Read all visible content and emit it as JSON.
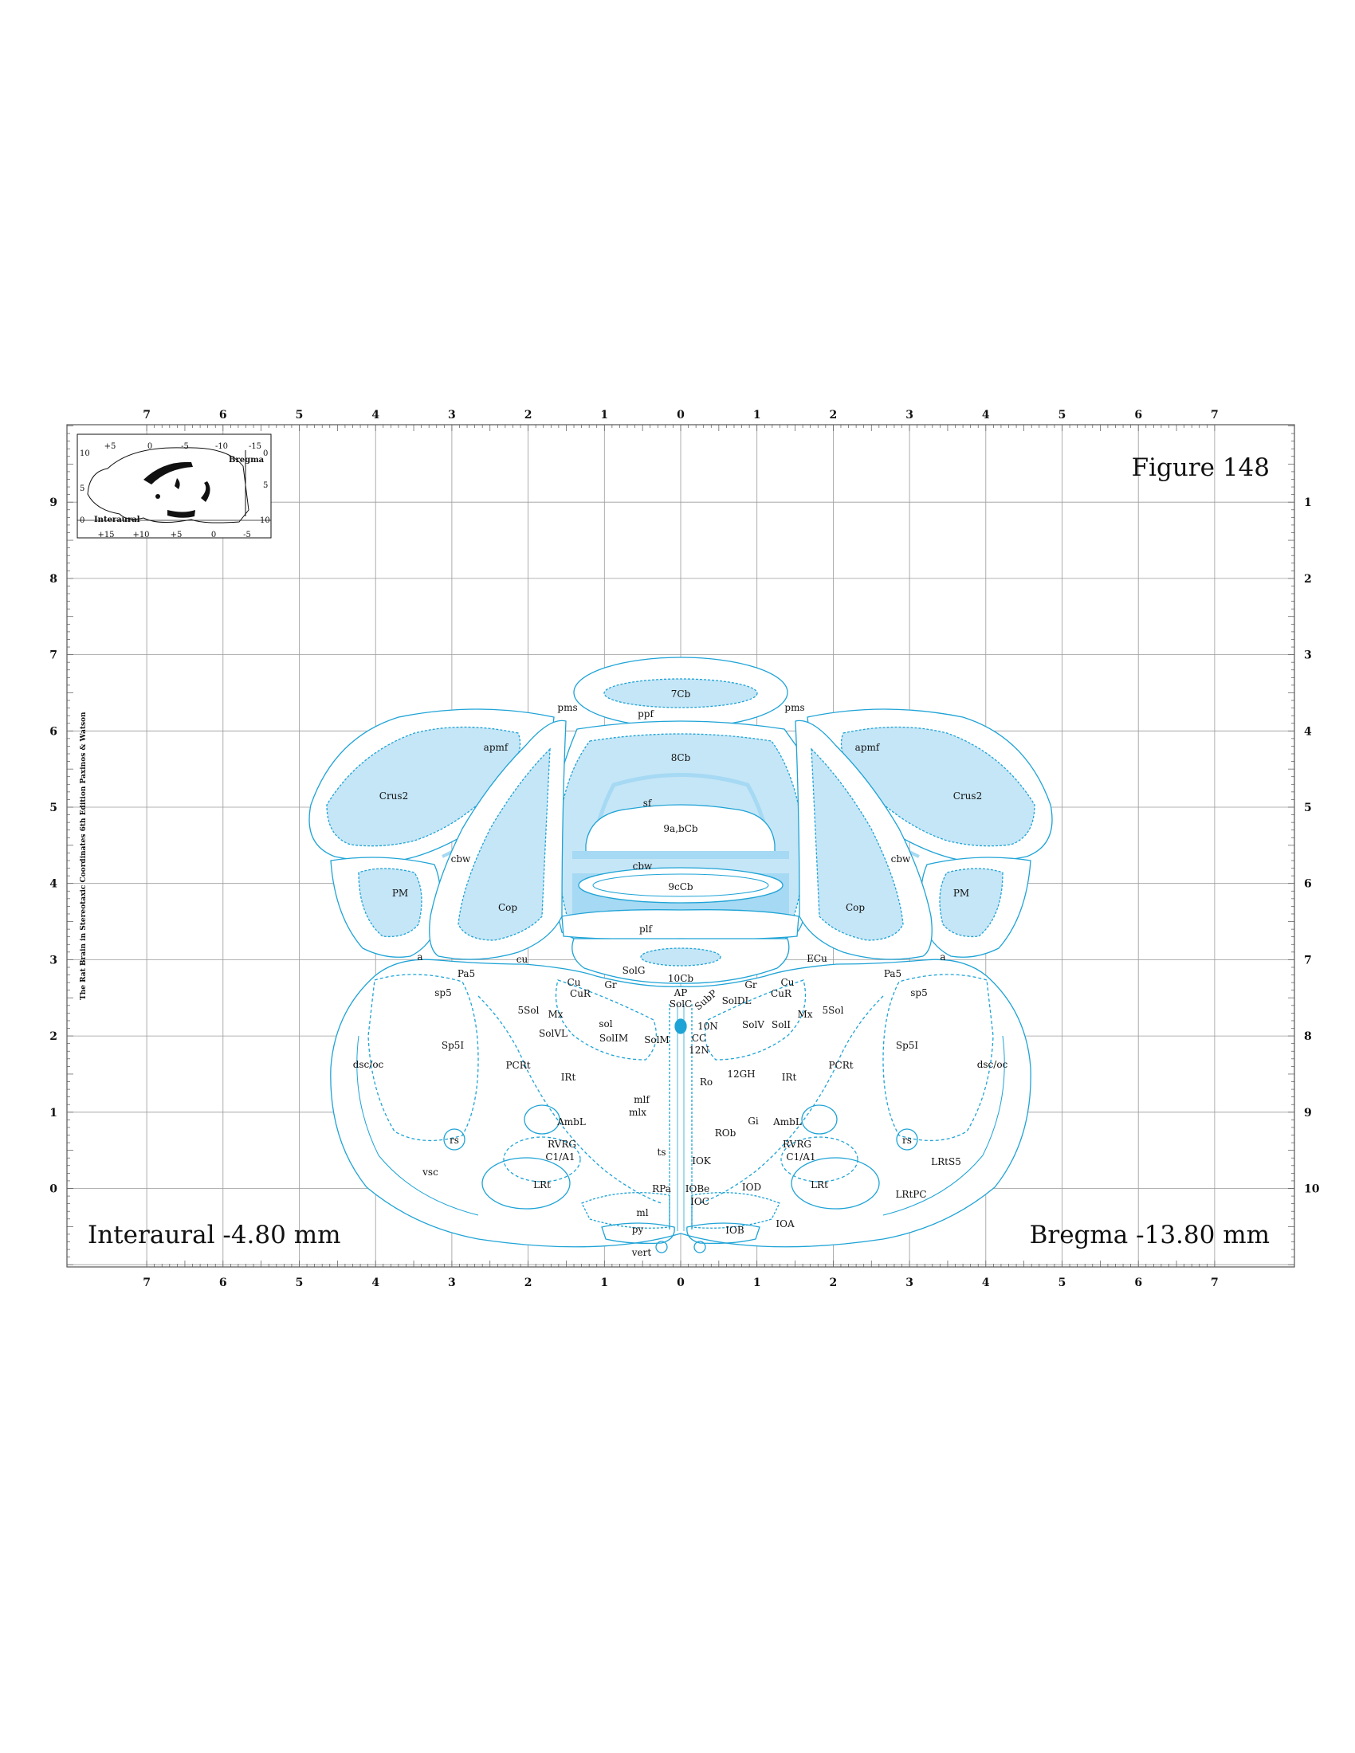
{
  "figure_title": "Figure 148",
  "interaural": "Interaural -4.80 mm",
  "bregma": "Bregma -13.80 mm",
  "side_credit": "The Rat Brain in Stereotaxic Coordinates 6th Edition Paxinos & Watson",
  "x_axis_ticks": [
    "7",
    "6",
    "5",
    "4",
    "3",
    "2",
    "1",
    "0",
    "1",
    "2",
    "3",
    "4",
    "5",
    "6",
    "7"
  ],
  "y_axis_left_ticks": [
    "9",
    "8",
    "7",
    "6",
    "5",
    "4",
    "3",
    "2",
    "1",
    "0"
  ],
  "y_axis_right_ticks": [
    "1",
    "2",
    "3",
    "4",
    "5",
    "6",
    "7",
    "8",
    "9",
    "10"
  ],
  "inset": {
    "top_ticks": [
      "+5",
      "0",
      "-5",
      "-10",
      "-15"
    ],
    "bottom_ticks": [
      "+15",
      "+10",
      "+5",
      "0",
      "-5"
    ],
    "left_ticks": [
      "10",
      "5",
      "0"
    ],
    "right_ticks": [
      "0",
      "5",
      "10"
    ],
    "bregma_label": "Bregma",
    "interaural_label": "Interaural"
  },
  "region_labels": {
    "cb7": "7Cb",
    "pms_l": "pms",
    "pms_r": "pms",
    "ppf": "ppf",
    "cb8": "8Cb",
    "apmf_l": "apmf",
    "apmf_r": "apmf",
    "crus2_l": "Crus2",
    "crus2_r": "Crus2",
    "sf": "sf",
    "cb9ab": "9a,bCb",
    "cbw_l": "cbw",
    "cbw_c": "cbw",
    "cbw_r": "cbw",
    "pm_l": "PM",
    "pm_r": "PM",
    "cb9c": "9cCb",
    "cop_l": "Cop",
    "cop_r": "Cop",
    "plf": "plf",
    "a_l": "a",
    "a_r": "a",
    "cu_l": "cu",
    "ecu": "ECu",
    "pa5_l": "Pa5",
    "pa5_r": "Pa5",
    "solg": "SolG",
    "cb10": "10Cb",
    "sp5_l": "sp5",
    "sp5_r": "sp5",
    "cu_nl": "Cu",
    "cur_l": "CuR",
    "gr_l": "Gr",
    "ap": "AP",
    "solc": "SolC",
    "subp": "SubP",
    "gr_r": "Gr",
    "cu_nr": "Cu",
    "cur_r": "CuR",
    "soldl": "SolDL",
    "mx_l": "Mx",
    "mx_r": "Mx",
    "sol5_l": "5Sol",
    "sol5_r": "5Sol",
    "solvl": "SolVL",
    "sol": "sol",
    "solim": "SolIM",
    "solm": "SolM",
    "n10": "10N",
    "cc": "CC",
    "n12": "12N",
    "solv": "SolV",
    "soli": "SolI",
    "sp5i_l": "Sp5I",
    "sp5i_r": "Sp5I",
    "dscoc_l": "dsc/oc",
    "dscoc_r": "dsc/oc",
    "pcrt_l": "PCRt",
    "pcrt_r": "PCRt",
    "irt_l": "IRt",
    "irt_r": "IRt",
    "gh12": "12GH",
    "ro": "Ro",
    "mlf": "mlf",
    "mlx": "mlx",
    "gi": "Gi",
    "ambl_l": "AmbL",
    "ambl_r": "AmbL",
    "rob": "ROb",
    "rs_l": "rs",
    "rs_r": "rs",
    "rvrg_l": "RVRG",
    "rvrg_r": "RVRG",
    "c1a1_l": "C1/A1",
    "c1a1_r": "C1/A1",
    "ts": "ts",
    "iok": "IOK",
    "lrts5": "LRtS5",
    "vsc": "vsc",
    "lrt_l": "LRt",
    "lrt_r": "LRt",
    "rpa": "RPa",
    "iobe": "IOBe",
    "iod": "IOD",
    "lrtpc": "LRtPC",
    "ioc": "IOC",
    "ml": "ml",
    "ioa": "IOA",
    "py": "py",
    "iob": "IOB",
    "vert": "vert"
  },
  "colors": {
    "outline": "#1ea3d6",
    "fill_light": "#c5e6f7",
    "fill_mid": "#a6d9f3",
    "grid": "#9a9a9a"
  }
}
